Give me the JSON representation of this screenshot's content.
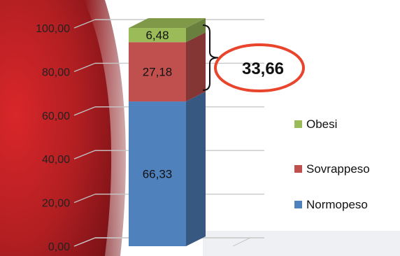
{
  "chart_data": {
    "type": "bar",
    "stacked": true,
    "three_d": true,
    "categories": [
      ""
    ],
    "series": [
      {
        "name": "Normopeso",
        "values": [
          66.33
        ],
        "color": "#4f81bd"
      },
      {
        "name": "Sovrappeso",
        "values": [
          27.18
        ],
        "color": "#c0504d"
      },
      {
        "name": "Obesi",
        "values": [
          6.48
        ],
        "color": "#9bbb59"
      }
    ],
    "data_labels": [
      "66,33",
      "27,18",
      "6,48"
    ],
    "y_ticks": [
      "0,00",
      "20,00",
      "40,00",
      "60,00",
      "80,00",
      "100,00"
    ],
    "ylim": [
      0,
      100
    ],
    "grid": true,
    "legend_position": "right",
    "annotation": {
      "text": "33,66",
      "color": "#e8452c"
    }
  }
}
